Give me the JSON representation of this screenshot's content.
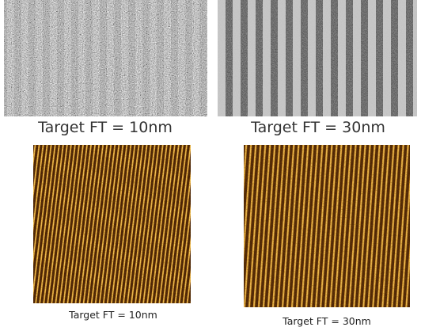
{
  "panels": [
    {
      "caption": "Target FT = 10nm"
    },
    {
      "caption": "Target FT = 30nm"
    },
    {
      "caption": "Target FT = 10nm"
    },
    {
      "caption": "Target FT = 30nm"
    }
  ]
}
